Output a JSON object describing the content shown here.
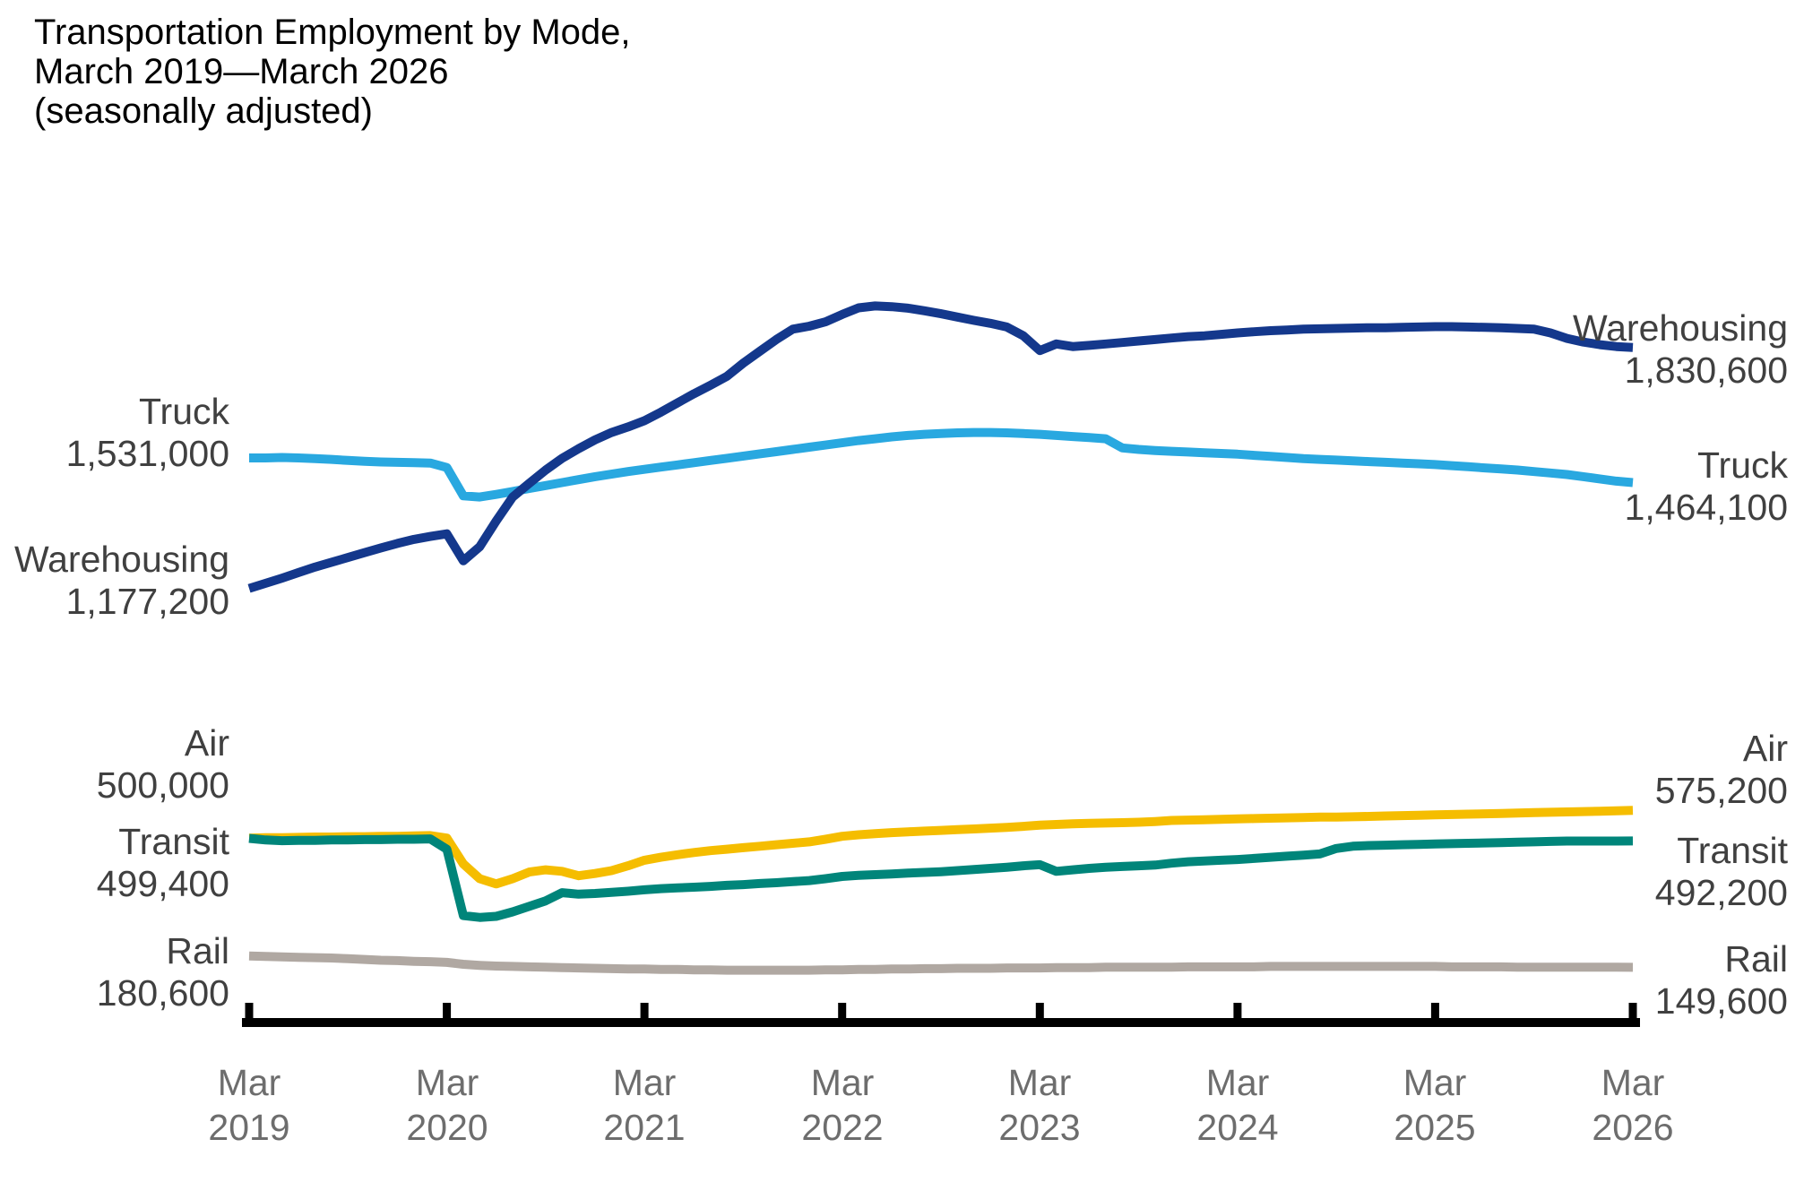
{
  "title": {
    "line1": "Transportation Employment by Mode,",
    "line2": "March 2019—March 2026",
    "line3": "(seasonally adjusted)"
  },
  "colors": {
    "warehousing": "#14388c",
    "truck": "#29a8e0",
    "air": "#f5bd00",
    "transit": "#00857a",
    "rail": "#b0a8a2",
    "axis": "#000000",
    "series_label_text": "#404040",
    "tick_label_text": "#6d6d6d"
  },
  "labels": {
    "left": [
      {
        "name": "Truck",
        "value": "1,531,000"
      },
      {
        "name": "Warehousing",
        "value": "1,177,200"
      },
      {
        "name": "Air",
        "value": "500,000"
      },
      {
        "name": "Transit",
        "value": "499,400"
      },
      {
        "name": "Rail",
        "value": "180,600"
      }
    ],
    "right": [
      {
        "name": "Warehousing",
        "value": "1,830,600"
      },
      {
        "name": "Truck",
        "value": "1,464,100"
      },
      {
        "name": "Air",
        "value": "575,200"
      },
      {
        "name": "Transit",
        "value": "492,200"
      },
      {
        "name": "Rail",
        "value": "149,600"
      }
    ]
  },
  "chart_data": {
    "type": "line",
    "title": "Transportation Employment by Mode, March 2019—March 2026 (seasonally adjusted)",
    "units": "employees, thousands, seasonally adjusted, monthly from March 2019 to March 2026",
    "grid": false,
    "legend_position": "inline-end-labels",
    "x_interval": "monthly",
    "x_range": [
      "Mar 2019",
      "Mar 2026"
    ],
    "x_ticks": [
      {
        "month": "Mar",
        "year": "2019"
      },
      {
        "month": "Mar",
        "year": "2020"
      },
      {
        "month": "Mar",
        "year": "2021"
      },
      {
        "month": "Mar",
        "year": "2022"
      },
      {
        "month": "Mar",
        "year": "2023"
      },
      {
        "month": "Mar",
        "year": "2024"
      },
      {
        "month": "Mar",
        "year": "2025"
      },
      {
        "month": "Mar",
        "year": "2026"
      }
    ],
    "series": [
      {
        "name": "Air",
        "color": "#f5bd00",
        "start_value": 500000,
        "end_value": 575200,
        "values_thousands": [
          500,
          501,
          501,
          502,
          503,
          503,
          504,
          504,
          505,
          505,
          506,
          507,
          500,
          430,
          390,
          376,
          390,
          408,
          414,
          410,
          398,
          404,
          412,
          425,
          440,
          448,
          455,
          461,
          466,
          470,
          474,
          478,
          482,
          486,
          490,
          497,
          505,
          509,
          512,
          515,
          517,
          519,
          521,
          523,
          525,
          527,
          529,
          532,
          535,
          537,
          539,
          540,
          541,
          542,
          543,
          545,
          548,
          549,
          550,
          551,
          552,
          553,
          554,
          555,
          556,
          557,
          557,
          558,
          559,
          560,
          561,
          562,
          563,
          564,
          565,
          566,
          567,
          568,
          569,
          570,
          571,
          572,
          573,
          574,
          575.2
        ]
      },
      {
        "name": "Transit",
        "color": "#00857a",
        "start_value": 499400,
        "end_value": 492200,
        "values_thousands": [
          499.4,
          495,
          493,
          494,
          494,
          495,
          495,
          496,
          496,
          497,
          497,
          498,
          470,
          290,
          285,
          288,
          300,
          315,
          330,
          352,
          348,
          350,
          353,
          356,
          360,
          363,
          365,
          367,
          369,
          372,
          374,
          377,
          379,
          382,
          385,
          390,
          396,
          399,
          401,
          403,
          405,
          407,
          409,
          412,
          415,
          418,
          421,
          425,
          428,
          410,
          414,
          418,
          421,
          423,
          425,
          427,
          432,
          436,
          438,
          440,
          442,
          445,
          448,
          451,
          454,
          457,
          472,
          478,
          480,
          481,
          482,
          483,
          484,
          485,
          486,
          487,
          488,
          489,
          490,
          491,
          492,
          492,
          492,
          492,
          492.2
        ]
      },
      {
        "name": "Rail",
        "color": "#b0a8a2",
        "start_value": 180600,
        "end_value": 149600,
        "values_thousands": [
          180.6,
          179,
          178,
          177,
          176,
          175,
          173,
          171,
          169,
          168,
          166,
          165,
          163,
          158,
          155,
          153,
          152,
          151,
          150,
          149,
          148,
          147,
          146,
          145,
          145,
          144,
          144,
          143,
          143,
          142,
          142,
          142,
          142,
          142,
          142,
          143,
          143,
          144,
          144,
          145,
          145,
          146,
          146,
          147,
          147,
          147,
          148,
          148,
          148,
          149,
          149,
          149,
          150,
          150,
          150,
          150,
          150,
          151,
          151,
          151,
          151,
          151,
          152,
          152,
          152,
          152,
          152,
          152,
          152,
          152,
          152,
          152,
          152,
          151,
          151,
          151,
          151,
          150,
          150,
          150,
          150,
          150,
          150,
          150,
          149.6
        ]
      },
      {
        "name": "Truck",
        "color": "#29a8e0",
        "start_value": 1531000,
        "end_value": 1464100,
        "values_thousands": [
          1531,
          1531,
          1532,
          1531,
          1529,
          1527,
          1524,
          1522,
          1520,
          1519,
          1518,
          1517,
          1505,
          1428,
          1425,
          1432,
          1440,
          1448,
          1456,
          1464,
          1472,
          1480,
          1487,
          1494,
          1500,
          1506,
          1512,
          1518,
          1524,
          1530,
          1536,
          1542,
          1548,
          1554,
          1560,
          1566,
          1572,
          1578,
          1583,
          1588,
          1592,
          1595,
          1597,
          1599,
          1600,
          1600,
          1599,
          1597,
          1595,
          1592,
          1589,
          1586,
          1583,
          1558,
          1554,
          1551,
          1549,
          1547,
          1545,
          1543,
          1541,
          1538,
          1535,
          1532,
          1529,
          1527,
          1525,
          1523,
          1521,
          1519,
          1517,
          1515,
          1513,
          1510,
          1507,
          1504,
          1501,
          1498,
          1494,
          1490,
          1486,
          1480,
          1474,
          1468,
          1464.1
        ]
      },
      {
        "name": "Warehousing",
        "color": "#14388c",
        "start_value": 1177200,
        "end_value": 1830600,
        "values_thousands": [
          1177.2,
          1191,
          1205,
          1220,
          1235,
          1248,
          1261,
          1274,
          1287,
          1299,
          1310,
          1318,
          1325,
          1252,
          1290,
          1360,
          1425,
          1462,
          1498,
          1530,
          1556,
          1580,
          1600,
          1615,
          1632,
          1655,
          1680,
          1705,
          1728,
          1752,
          1788,
          1820,
          1852,
          1880,
          1888,
          1900,
          1920,
          1938,
          1943,
          1941,
          1937,
          1930,
          1922,
          1913,
          1904,
          1896,
          1886,
          1862,
          1822,
          1840,
          1833,
          1836,
          1840,
          1844,
          1848,
          1852,
          1856,
          1860,
          1862,
          1866,
          1870,
          1873,
          1876,
          1878,
          1880,
          1881,
          1882,
          1883,
          1884,
          1884,
          1885,
          1886,
          1887,
          1887,
          1886,
          1885,
          1884,
          1882,
          1880,
          1870,
          1855,
          1845,
          1838,
          1833,
          1830.6
        ]
      }
    ]
  }
}
